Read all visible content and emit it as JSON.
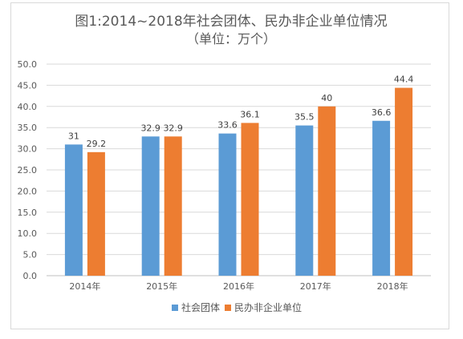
{
  "chart_data": {
    "type": "bar",
    "title": "图1:2014~2018年社会团体、民办非企业单位情况",
    "subtitle": "（单位：万个）",
    "xlabel": "",
    "ylabel": "",
    "categories": [
      "2014年",
      "2015年",
      "2016年",
      "2017年",
      "2018年"
    ],
    "series": [
      {
        "name": "社会团体",
        "values": [
          31,
          32.9,
          33.6,
          35.5,
          36.6
        ],
        "labels": [
          "31",
          "32.9",
          "33.6",
          "35.5",
          "36.6"
        ],
        "color": "#5b9bd5"
      },
      {
        "name": "民办非企业单位",
        "values": [
          29.2,
          32.9,
          36.1,
          40,
          44.4
        ],
        "labels": [
          "29.2",
          "32.9",
          "36.1",
          "40",
          "44.4"
        ],
        "color": "#ed7d31"
      }
    ],
    "ylim": [
      0,
      50
    ],
    "yticks": [
      "0.0",
      "5.0",
      "10.0",
      "15.0",
      "20.0",
      "25.0",
      "30.0",
      "35.0",
      "40.0",
      "45.0",
      "50.0"
    ],
    "grid": true,
    "legend_position": "bottom"
  }
}
